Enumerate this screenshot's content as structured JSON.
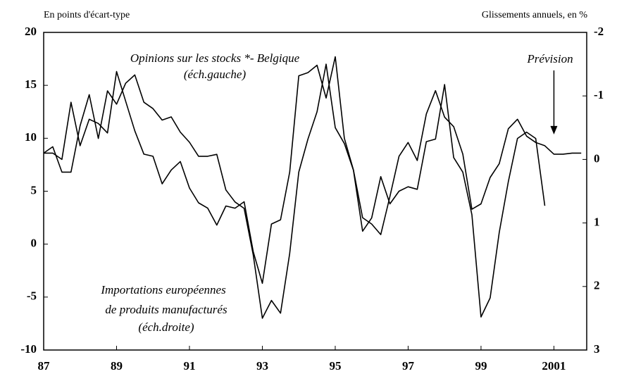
{
  "chart_data": {
    "type": "line",
    "left_axis_label": "En points d'écart-type",
    "right_axis_label": "Glissements annuels, en %",
    "xlim": [
      1987,
      2001.9
    ],
    "xticks": [
      {
        "value": 1987,
        "label": "87"
      },
      {
        "value": 1989,
        "label": "89"
      },
      {
        "value": 1991,
        "label": "91"
      },
      {
        "value": 1993,
        "label": "93"
      },
      {
        "value": 1995,
        "label": "95"
      },
      {
        "value": 1997,
        "label": "97"
      },
      {
        "value": 1999,
        "label": "99"
      },
      {
        "value": 2001,
        "label": "2001"
      }
    ],
    "ylim": [
      -10,
      20
    ],
    "yticks": [
      -10,
      -5,
      0,
      5,
      10,
      15,
      20
    ],
    "y2lim": [
      3,
      -2
    ],
    "y2ticks": [
      -2,
      -1,
      0,
      1,
      2,
      3
    ],
    "series": [
      {
        "name": "Opinions sur les stocks *- Belgique",
        "color": "#000000",
        "x": [
          1987,
          1987.25,
          1987.5,
          1987.75,
          1988,
          1988.25,
          1988.5,
          1988.75,
          1989,
          1989.25,
          1989.5,
          1989.75,
          1990,
          1990.25,
          1990.5,
          1990.75,
          1991,
          1991.25,
          1991.5,
          1991.75,
          1992,
          1992.25,
          1992.5,
          1992.75,
          1993,
          1993.25,
          1993.5,
          1993.75,
          1994,
          1994.25,
          1994.5,
          1994.75,
          1995,
          1995.25,
          1995.5,
          1995.75,
          1996,
          1996.25,
          1996.5,
          1996.75,
          1997,
          1997.25,
          1997.5,
          1997.75,
          1998,
          1998.25,
          1998.5,
          1998.75,
          1999,
          1999.25,
          1999.5,
          1999.75,
          2000,
          2000.25,
          2000.5,
          2000.75,
          2001,
          2001.25,
          2001.5,
          2001.75
        ],
        "values": [
          8.6,
          8.6,
          8.0,
          13.4,
          9.3,
          11.8,
          11.4,
          10.5,
          16.3,
          13.5,
          10.7,
          8.5,
          8.3,
          5.7,
          7.0,
          7.8,
          5.3,
          3.9,
          3.4,
          1.8,
          3.6,
          3.4,
          4.0,
          -0.7,
          -3.7,
          1.9,
          2.3,
          6.8,
          15.9,
          16.2,
          16.9,
          13.8,
          17.7,
          10.0,
          7.0,
          2.5,
          1.9,
          0.9,
          4.5,
          8.3,
          9.6,
          7.9,
          12.3,
          14.5,
          12.0,
          11.1,
          8.5,
          3.3,
          3.8,
          6.3,
          7.6,
          10.9,
          11.8,
          10.2,
          9.6,
          9.3,
          8.5,
          8.5,
          8.6,
          8.6
        ]
      },
      {
        "name": "Importations européennes",
        "color": "#000000",
        "axis": "y2",
        "x": [
          1987,
          1987.25,
          1987.5,
          1987.75,
          1988,
          1988.25,
          1988.5,
          1988.75,
          1989,
          1989.25,
          1989.5,
          1989.75,
          1990,
          1990.25,
          1990.5,
          1990.75,
          1991,
          1991.25,
          1991.5,
          1991.75,
          1992,
          1992.25,
          1992.5,
          1992.75,
          1993,
          1993.25,
          1993.5,
          1993.75,
          1994,
          1994.25,
          1994.5,
          1994.75,
          1995,
          1995.25,
          1995.5,
          1995.75,
          1996,
          1996.25,
          1996.5,
          1996.75,
          1997,
          1997.25,
          1997.5,
          1997.75,
          1998,
          1998.25,
          1998.5,
          1998.75,
          1999,
          1999.25,
          1999.5,
          1999.75,
          2000,
          2000.25,
          2000.5,
          2000.75
        ],
        "values": [
          -0.1,
          -0.2,
          0.2,
          0.2,
          -0.53,
          -1.02,
          -0.33,
          -1.08,
          -0.87,
          -1.2,
          -1.33,
          -0.9,
          -0.8,
          -0.62,
          -0.67,
          -0.43,
          -0.27,
          -0.05,
          -0.05,
          -0.08,
          0.48,
          0.67,
          0.77,
          1.5,
          2.5,
          2.22,
          2.42,
          1.48,
          0.2,
          -0.32,
          -0.75,
          -1.5,
          -0.5,
          -0.25,
          0.17,
          1.13,
          0.92,
          0.27,
          0.7,
          0.5,
          0.43,
          0.47,
          -0.28,
          -0.32,
          -1.18,
          -0.03,
          0.2,
          0.87,
          2.48,
          2.18,
          1.15,
          0.35,
          -0.33,
          -0.43,
          -0.33,
          0.73
        ]
      }
    ],
    "annotations": [
      {
        "text": "(éch.gauche)"
      },
      {
        "text": "de produits manufacturés"
      },
      {
        "text": "(éch.droite)"
      },
      {
        "text": "Prévision",
        "x": 2001,
        "y": 10.5
      }
    ]
  }
}
